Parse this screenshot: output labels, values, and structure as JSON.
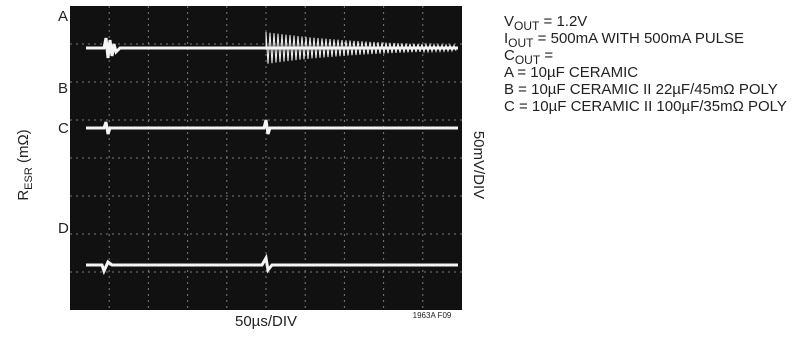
{
  "channels": [
    "A",
    "B",
    "C",
    "D"
  ],
  "y_label": {
    "main": "R",
    "sub": "ESR",
    "rest": " (mΩ)"
  },
  "right_label": "50mV/DIV",
  "x_label": "50µs/DIV",
  "figure_id": "1963A F09",
  "legend": [
    {
      "main": "V",
      "sub": "OUT",
      "rest": " = 1.2V"
    },
    {
      "main": "I",
      "sub": "OUT",
      "rest": " = 500mA WITH 500mA PULSE"
    },
    {
      "main": "C",
      "sub": "OUT",
      "rest": " ="
    },
    {
      "text": "A = 10µF CERAMIC"
    },
    {
      "text": "B = 10µF CERAMIC II 22µF/45mΩ POLY"
    },
    {
      "text": "C = 10µF CERAMIC II 100µF/35mΩ POLY"
    }
  ]
}
